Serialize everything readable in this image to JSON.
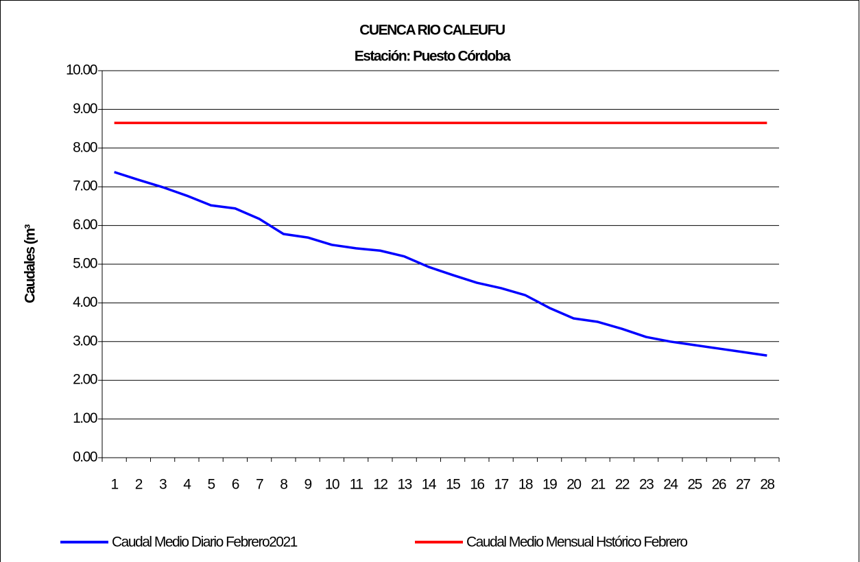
{
  "chart_data": {
    "type": "line",
    "title": "CUENCA RIO CALEUFU",
    "subtitle": "Estación: Puesto Córdoba",
    "y_label": "Caudales (m³",
    "categories": [
      "1",
      "2",
      "3",
      "4",
      "5",
      "6",
      "7",
      "8",
      "9",
      "10",
      "11",
      "12",
      "13",
      "14",
      "15",
      "16",
      "17",
      "18",
      "19",
      "20",
      "21",
      "22",
      "23",
      "24",
      "25",
      "26",
      "27",
      "28"
    ],
    "series": [
      {
        "name": "Caudal Medio Diario Febrero2021",
        "color": "#0000ff",
        "values": [
          7.38,
          7.18,
          6.99,
          6.77,
          6.52,
          6.44,
          6.17,
          5.78,
          5.69,
          5.5,
          5.41,
          5.35,
          5.2,
          4.93,
          4.72,
          4.52,
          4.38,
          4.2,
          3.87,
          3.6,
          3.51,
          3.33,
          3.12,
          3.0,
          2.91,
          2.82,
          2.73,
          2.64
        ]
      },
      {
        "name": "Caudal Medio Mensual Hstórico Febrero",
        "color": "#ff0000",
        "values": [
          8.65,
          8.65,
          8.65,
          8.65,
          8.65,
          8.65,
          8.65,
          8.65,
          8.65,
          8.65,
          8.65,
          8.65,
          8.65,
          8.65,
          8.65,
          8.65,
          8.65,
          8.65,
          8.65,
          8.65,
          8.65,
          8.65,
          8.65,
          8.65,
          8.65,
          8.65,
          8.65,
          8.65
        ]
      }
    ],
    "ylim": [
      0,
      10
    ],
    "yticks": [
      {
        "value": 0,
        "label": "0.00"
      },
      {
        "value": 1,
        "label": "1.00"
      },
      {
        "value": 2,
        "label": "2.00"
      },
      {
        "value": 3,
        "label": "3.00"
      },
      {
        "value": 4,
        "label": "4.00"
      },
      {
        "value": 5,
        "label": "5.00"
      },
      {
        "value": 6,
        "label": "6.00"
      },
      {
        "value": 7,
        "label": "7.00"
      },
      {
        "value": 8,
        "label": "8.00"
      },
      {
        "value": 9,
        "label": "9.00"
      },
      {
        "value": 10,
        "label": "10.00"
      }
    ],
    "grid": true,
    "legend": "bottom"
  }
}
